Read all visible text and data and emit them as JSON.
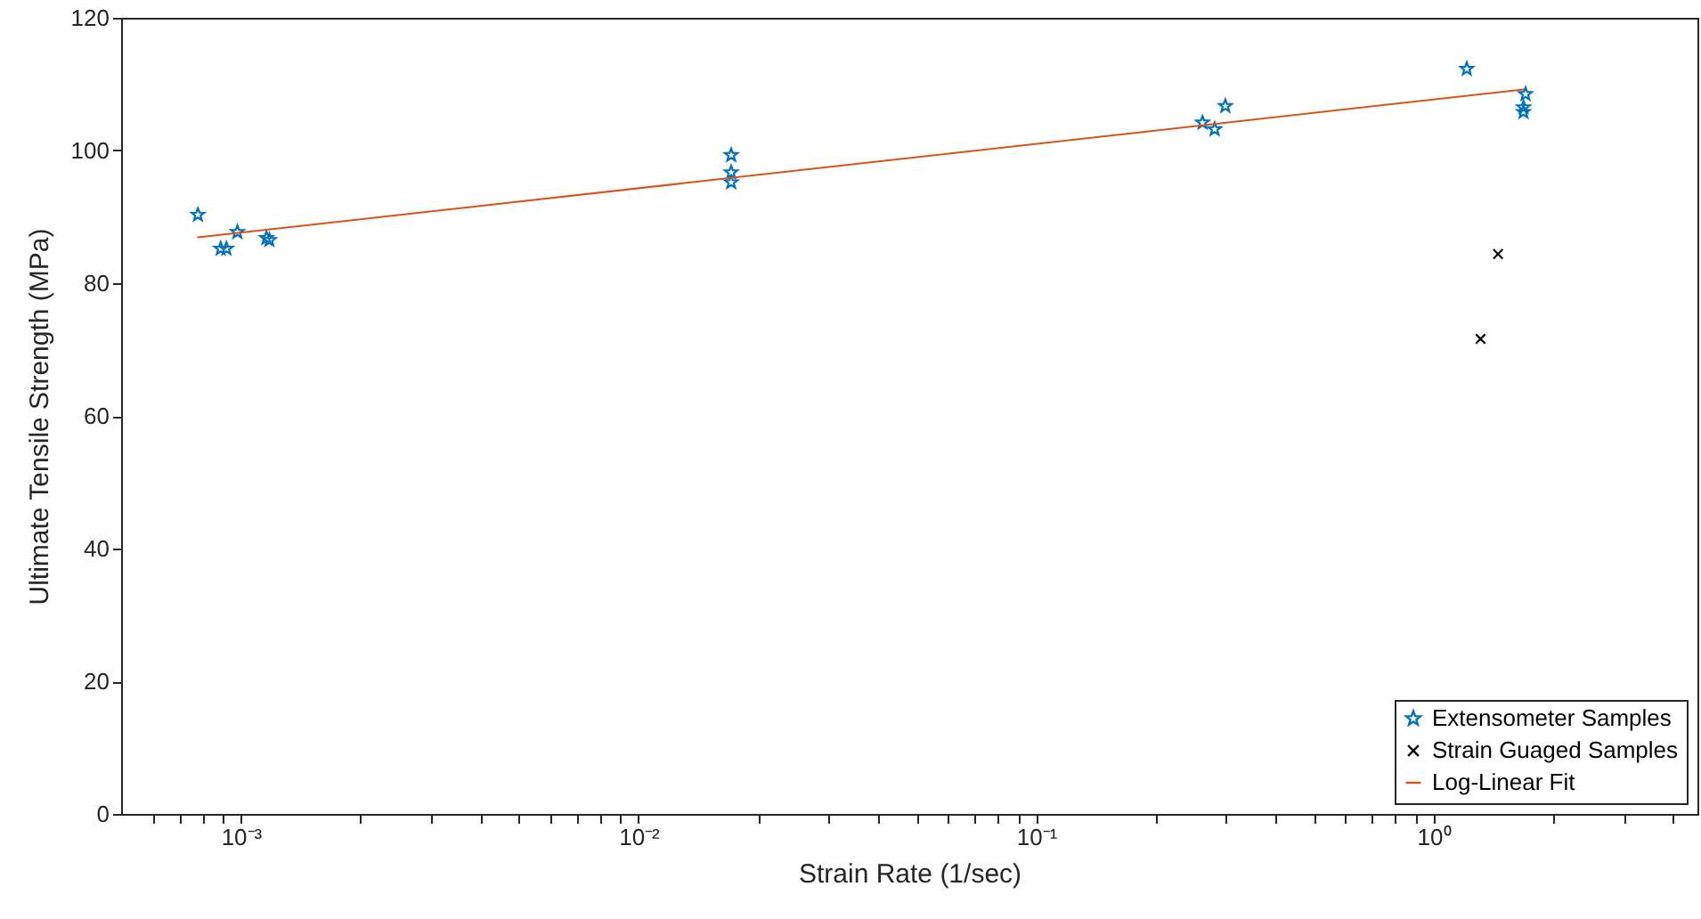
{
  "chart_data": {
    "type": "scatter",
    "xlabel": "Strain Rate (1/sec)",
    "ylabel": "Ultimate Tensile Strength (MPa)",
    "log": "x",
    "xlim": [
      0.0005,
      4.6
    ],
    "xticks": [
      {
        "value": 0.0006,
        "label": null
      },
      {
        "value": 0.0007,
        "label": null
      },
      {
        "value": 0.0008,
        "label": null
      },
      {
        "value": 0.0009,
        "label": null
      },
      {
        "value": 0.001,
        "label": "10⁻³"
      },
      {
        "value": 0.002,
        "label": null
      },
      {
        "value": 0.003,
        "label": null
      },
      {
        "value": 0.004,
        "label": null
      },
      {
        "value": 0.005,
        "label": null
      },
      {
        "value": 0.006,
        "label": null
      },
      {
        "value": 0.007,
        "label": null
      },
      {
        "value": 0.008,
        "label": null
      },
      {
        "value": 0.009,
        "label": null
      },
      {
        "value": 0.01,
        "label": "10⁻²"
      },
      {
        "value": 0.02,
        "label": null
      },
      {
        "value": 0.03,
        "label": null
      },
      {
        "value": 0.04,
        "label": null
      },
      {
        "value": 0.05,
        "label": null
      },
      {
        "value": 0.06,
        "label": null
      },
      {
        "value": 0.07,
        "label": null
      },
      {
        "value": 0.08,
        "label": null
      },
      {
        "value": 0.09,
        "label": null
      },
      {
        "value": 0.1,
        "label": "10⁻¹"
      },
      {
        "value": 0.2,
        "label": null
      },
      {
        "value": 0.3,
        "label": null
      },
      {
        "value": 0.4,
        "label": null
      },
      {
        "value": 0.5,
        "label": null
      },
      {
        "value": 0.6,
        "label": null
      },
      {
        "value": 0.7,
        "label": null
      },
      {
        "value": 0.8,
        "label": null
      },
      {
        "value": 0.9,
        "label": null
      },
      {
        "value": 1,
        "label": "10⁰"
      },
      {
        "value": 2,
        "label": null
      },
      {
        "value": 3,
        "label": null
      },
      {
        "value": 4,
        "label": null
      }
    ],
    "ylim": [
      0,
      120
    ],
    "yticks": [
      0,
      20,
      40,
      60,
      80,
      100,
      120
    ],
    "grid": false,
    "legend": "bottom right",
    "series": [
      {
        "name": "Extensometer Samples",
        "color": "#0072bd",
        "marker": "star",
        "x": [
          0.00078,
          0.00089,
          0.00092,
          0.00098,
          0.00116,
          0.00118,
          0.0171,
          0.0171,
          0.0171,
          0.262,
          0.281,
          0.299,
          1.21,
          1.7,
          1.68,
          1.68
        ],
        "values": [
          90.3,
          85.2,
          85.2,
          87.7,
          86.8,
          86.5,
          99.3,
          96.7,
          95.2,
          104.2,
          103.2,
          106.7,
          112.3,
          108.5,
          106.5,
          105.8
        ]
      },
      {
        "name": "Strain Guaged Samples",
        "color": "#000000",
        "marker": "cross",
        "x": [
          1.45,
          1.31
        ],
        "values": [
          84.4,
          71.6
        ]
      },
      {
        "name": "Log-Linear Fit",
        "type": "line",
        "color": "#d95319",
        "line_style": "solid",
        "x": [
          0.00078,
          1.68
        ],
        "values": [
          86.9,
          109.2
        ]
      }
    ]
  }
}
